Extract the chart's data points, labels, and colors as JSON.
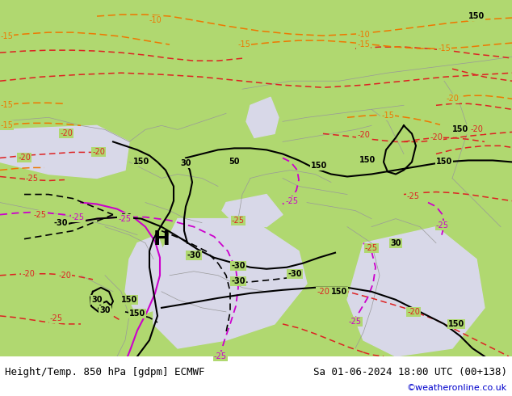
{
  "title_left": "Height/Temp. 850 hPa [gdpm] ECMWF",
  "title_right": "Sa 01-06-2024 18:00 UTC (00+138)",
  "credit": "©weatheronline.co.uk",
  "bg_color": "#b0d870",
  "land_color": "#b0d870",
  "sea_color": "#d8d8e8",
  "border_color": "#999999",
  "contour_black_color": "#000000",
  "contour_red_color": "#dd2222",
  "contour_orange_color": "#ee7700",
  "contour_magenta_color": "#cc00cc",
  "label_fontsize": 7,
  "title_fontsize": 9,
  "credit_color": "#0000cc",
  "figsize": [
    6.34,
    4.9
  ],
  "dpi": 100
}
